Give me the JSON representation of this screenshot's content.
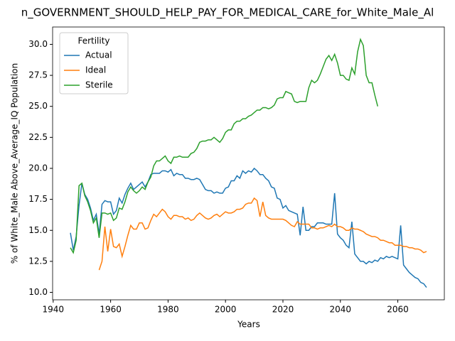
{
  "chart_data": {
    "type": "line",
    "title": "n_GOVERNMENT_SHOULD_HELP_PAY_FOR_MEDICAL_CARE_for_White_Male_Al",
    "x_label": "Years",
    "y_label": "% of White_Male Above_Average_IQ Population",
    "legend_title": "Fertility",
    "legend": "upper left",
    "grid": false,
    "xlim": [
      1939.8,
      2076.2
    ],
    "ylim": [
      9.4,
      31.4
    ],
    "xticks": [
      1940,
      1960,
      1980,
      2000,
      2020,
      2040,
      2060
    ],
    "yticks": [
      {
        "value": 10,
        "label": "10.0"
      },
      12.5,
      {
        "value": 15,
        "label": "15.0"
      },
      17.5,
      {
        "value": 20,
        "label": "20.0"
      },
      22.5,
      {
        "value": 25,
        "label": "25.0"
      },
      27.5,
      {
        "value": 30,
        "label": "30.0"
      }
    ],
    "x": [
      1946,
      1947,
      1948,
      1949,
      1950,
      1951,
      1952,
      1953,
      1954,
      1955,
      1956,
      1957,
      1958,
      1959,
      1960,
      1961,
      1962,
      1963,
      1964,
      1965,
      1966,
      1967,
      1968,
      1969,
      1970,
      1971,
      1972,
      1973,
      1974,
      1975,
      1976,
      1977,
      1978,
      1979,
      1980,
      1981,
      1982,
      1983,
      1984,
      1985,
      1986,
      1987,
      1988,
      1989,
      1990,
      1991,
      1992,
      1993,
      1994,
      1995,
      1996,
      1997,
      1998,
      1999,
      2000,
      2001,
      2002,
      2003,
      2004,
      2005,
      2006,
      2007,
      2008,
      2009,
      2010,
      2011,
      2012,
      2013,
      2014,
      2015,
      2016,
      2017,
      2018,
      2019,
      2020,
      2021,
      2022,
      2023,
      2024,
      2025,
      2026,
      2027,
      2028,
      2029,
      2030,
      2031,
      2032,
      2033,
      2034,
      2035,
      2036,
      2037,
      2038,
      2039,
      2040,
      2041,
      2042,
      2043,
      2044,
      2045,
      2046,
      2047,
      2048,
      2049,
      2050,
      2051,
      2052,
      2053,
      2054,
      2055,
      2056,
      2057,
      2058,
      2059,
      2060,
      2061,
      2062,
      2063,
      2064,
      2065,
      2066,
      2067,
      2068,
      2069,
      2070
    ],
    "series": [
      {
        "name": "Actual",
        "color": "#1f77b4",
        "values": [
          14.8,
          13.4,
          14.5,
          17.0,
          18.8,
          17.9,
          17.5,
          16.8,
          15.8,
          16.3,
          14.7,
          17.1,
          17.4,
          17.3,
          17.3,
          16.3,
          16.6,
          17.6,
          17.2,
          17.9,
          18.4,
          18.8,
          18.3,
          18.5,
          18.7,
          18.9,
          18.5,
          18.9,
          19.5,
          19.6,
          19.6,
          19.6,
          19.8,
          19.8,
          19.7,
          19.9,
          19.4,
          19.6,
          19.5,
          19.5,
          19.2,
          19.2,
          19.1,
          19.1,
          19.2,
          19.1,
          18.7,
          18.3,
          18.2,
          18.2,
          18.0,
          18.1,
          18.0,
          18.0,
          18.4,
          18.5,
          19.0,
          19.0,
          19.4,
          19.2,
          19.8,
          19.6,
          19.8,
          19.7,
          20.0,
          19.8,
          19.5,
          19.5,
          19.2,
          19.0,
          18.5,
          18.4,
          17.6,
          17.5,
          16.8,
          17.0,
          16.6,
          16.5,
          16.4,
          16.3,
          14.6,
          16.9,
          15.0,
          15.0,
          15.3,
          15.3,
          15.6,
          15.6,
          15.6,
          15.5,
          15.5,
          15.5,
          18.0,
          14.7,
          14.4,
          14.2,
          13.8,
          13.6,
          15.7,
          13.1,
          12.8,
          12.5,
          12.5,
          12.3,
          12.5,
          12.4,
          12.6,
          12.5,
          12.8,
          12.7,
          12.9,
          12.8,
          12.9,
          12.8,
          12.7,
          15.4,
          12.2,
          11.9,
          11.6,
          11.4,
          11.2,
          11.1,
          10.8,
          10.7,
          10.4
        ]
      },
      {
        "name": "Ideal",
        "color": "#ff7f0e",
        "values": [
          null,
          null,
          null,
          null,
          null,
          null,
          null,
          null,
          null,
          null,
          11.8,
          12.5,
          15.3,
          13.3,
          15.1,
          13.7,
          13.6,
          13.9,
          12.9,
          13.7,
          14.6,
          15.4,
          15.1,
          15.1,
          15.6,
          15.6,
          15.1,
          15.2,
          15.8,
          16.3,
          16.1,
          16.4,
          16.7,
          16.5,
          16.1,
          15.9,
          16.2,
          16.2,
          16.1,
          16.1,
          15.9,
          16.0,
          15.8,
          15.9,
          16.2,
          16.4,
          16.2,
          16.0,
          15.9,
          16.0,
          16.2,
          16.3,
          16.1,
          16.3,
          16.5,
          16.4,
          16.4,
          16.5,
          16.7,
          16.7,
          16.8,
          17.1,
          17.2,
          17.2,
          17.6,
          17.4,
          16.1,
          17.3,
          16.2,
          16.0,
          15.9,
          15.9,
          15.9,
          15.9,
          15.9,
          15.8,
          15.6,
          15.4,
          15.3,
          15.7,
          15.5,
          15.5,
          15.5,
          15.5,
          15.2,
          15.2,
          15.1,
          15.2,
          15.2,
          15.3,
          15.4,
          15.3,
          15.5,
          15.3,
          15.3,
          15.2,
          15.0,
          15.0,
          15.2,
          15.1,
          15.1,
          15.0,
          14.9,
          14.7,
          14.6,
          14.5,
          14.5,
          14.4,
          14.2,
          14.2,
          14.1,
          14.0,
          14.0,
          13.8,
          13.8,
          13.8,
          13.7,
          13.7,
          13.6,
          13.6,
          13.5,
          13.5,
          13.4,
          13.2,
          13.3
        ]
      },
      {
        "name": "Sterile",
        "color": "#2ca02c",
        "values": [
          13.6,
          13.2,
          14.2,
          18.6,
          18.8,
          17.8,
          17.3,
          16.6,
          15.6,
          16.0,
          14.4,
          16.4,
          16.4,
          16.3,
          16.4,
          15.8,
          16.0,
          16.8,
          16.7,
          17.3,
          18.1,
          18.5,
          18.2,
          18.0,
          18.2,
          18.5,
          18.3,
          18.9,
          19.3,
          20.2,
          20.6,
          20.6,
          20.8,
          21.0,
          20.6,
          20.4,
          20.9,
          20.9,
          21.0,
          20.9,
          20.9,
          20.9,
          21.2,
          21.3,
          21.6,
          22.1,
          22.2,
          22.2,
          22.3,
          22.3,
          22.5,
          22.3,
          22.1,
          22.4,
          22.9,
          23.1,
          23.1,
          23.6,
          23.8,
          23.8,
          24.0,
          24.0,
          24.2,
          24.3,
          24.5,
          24.7,
          24.7,
          24.9,
          24.9,
          24.8,
          24.9,
          25.1,
          25.6,
          25.7,
          25.7,
          26.2,
          26.1,
          26.0,
          25.4,
          25.3,
          25.4,
          25.4,
          25.4,
          26.5,
          27.1,
          26.9,
          27.1,
          27.6,
          28.2,
          28.8,
          29.1,
          28.7,
          29.2,
          28.5,
          27.5,
          27.5,
          27.2,
          27.1,
          28.1,
          27.6,
          29.4,
          30.4,
          29.9,
          27.5,
          26.9,
          26.9,
          25.9,
          25.0,
          null,
          null,
          null,
          null,
          null,
          null,
          null,
          null,
          null,
          null,
          null,
          null,
          null,
          null,
          null,
          null,
          null
        ]
      }
    ]
  }
}
